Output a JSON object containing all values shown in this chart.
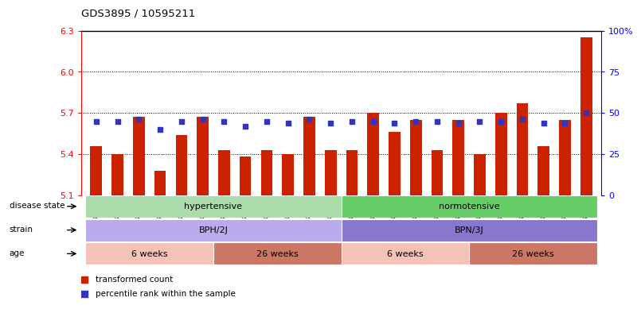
{
  "title": "GDS3895 / 10595211",
  "samples": [
    "GSM618086",
    "GSM618087",
    "GSM618088",
    "GSM618089",
    "GSM618090",
    "GSM618091",
    "GSM618074",
    "GSM618075",
    "GSM618076",
    "GSM618077",
    "GSM618078",
    "GSM618079",
    "GSM618092",
    "GSM618093",
    "GSM618094",
    "GSM618095",
    "GSM618096",
    "GSM618097",
    "GSM618080",
    "GSM618081",
    "GSM618082",
    "GSM618083",
    "GSM618084",
    "GSM618085"
  ],
  "bar_values": [
    5.46,
    5.4,
    5.67,
    5.28,
    5.54,
    5.67,
    5.43,
    5.38,
    5.43,
    5.4,
    5.67,
    5.43,
    5.43,
    5.7,
    5.56,
    5.65,
    5.43,
    5.65,
    5.4,
    5.7,
    5.77,
    5.46,
    5.65,
    6.25
  ],
  "percentile_values": [
    45,
    45,
    46,
    40,
    45,
    46,
    45,
    42,
    45,
    44,
    46,
    44,
    45,
    45,
    44,
    45,
    45,
    44,
    45,
    45,
    46,
    44,
    44,
    50
  ],
  "bar_color": "#cc2200",
  "dot_color": "#3333bb",
  "y_min": 5.1,
  "y_max": 6.3,
  "y_ticks_left": [
    5.1,
    5.4,
    5.7,
    6.0,
    6.3
  ],
  "y_ticks_right": [
    0,
    25,
    50,
    75,
    100
  ],
  "y_ticks_right_labels": [
    "0",
    "25",
    "50",
    "75",
    "100%"
  ],
  "grid_lines": [
    5.4,
    5.7,
    6.0
  ],
  "disease_state_groups": [
    {
      "label": "hypertensive",
      "start": 0,
      "end": 12,
      "color": "#aaddaa"
    },
    {
      "label": "normotensive",
      "start": 12,
      "end": 24,
      "color": "#66cc66"
    }
  ],
  "strain_groups": [
    {
      "label": "BPH/2J",
      "start": 0,
      "end": 12,
      "color": "#bbaaee"
    },
    {
      "label": "BPN/3J",
      "start": 12,
      "end": 24,
      "color": "#8877cc"
    }
  ],
  "age_groups": [
    {
      "label": "6 weeks",
      "start": 0,
      "end": 6,
      "color": "#f4c2b8"
    },
    {
      "label": "26 weeks",
      "start": 6,
      "end": 12,
      "color": "#cc7766"
    },
    {
      "label": "6 weeks",
      "start": 12,
      "end": 18,
      "color": "#f4c2b8"
    },
    {
      "label": "26 weeks",
      "start": 18,
      "end": 24,
      "color": "#cc7766"
    }
  ],
  "row_labels": [
    "disease state",
    "strain",
    "age"
  ],
  "legend_items": [
    "transformed count",
    "percentile rank within the sample"
  ],
  "legend_colors": [
    "#cc2200",
    "#3333bb"
  ],
  "bg_color": "#ffffff"
}
